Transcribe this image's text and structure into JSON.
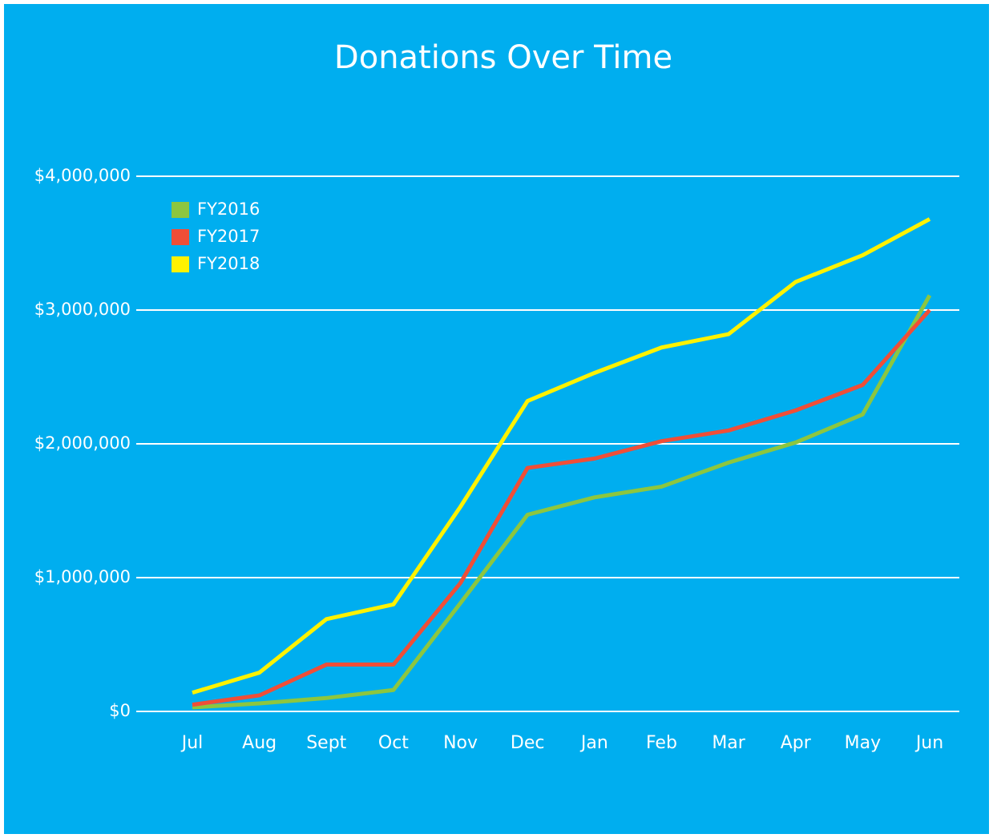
{
  "chart_data": {
    "type": "line",
    "title": "Donations Over Time",
    "categories": [
      "Jul",
      "Aug",
      "Sept",
      "Oct",
      "Nov",
      "Dec",
      "Jan",
      "Feb",
      "Mar",
      "Apr",
      "May",
      "Jun"
    ],
    "series": [
      {
        "name": "FY2016",
        "color": "#8dc63f",
        "values": [
          30000,
          60000,
          100000,
          160000,
          810000,
          1470000,
          1600000,
          1680000,
          1860000,
          2010000,
          2220000,
          3110000
        ]
      },
      {
        "name": "FY2017",
        "color": "#f04e37",
        "values": [
          50000,
          120000,
          350000,
          350000,
          960000,
          1820000,
          1890000,
          2020000,
          2100000,
          2250000,
          2440000,
          3000000
        ]
      },
      {
        "name": "FY2018",
        "color": "#fff200",
        "values": [
          140000,
          290000,
          690000,
          800000,
          1530000,
          2320000,
          2530000,
          2720000,
          2820000,
          3210000,
          3410000,
          3680000
        ]
      }
    ],
    "ylim": [
      0,
      4000000
    ],
    "yticks": [
      {
        "value": 0,
        "label": "$0"
      },
      {
        "value": 1000000,
        "label": "$1,000,000"
      },
      {
        "value": 2000000,
        "label": "$2,000,000"
      },
      {
        "value": 3000000,
        "label": "$3,000,000"
      },
      {
        "value": 4000000,
        "label": "$4,000,000"
      }
    ],
    "grid": true,
    "legend": "top-left",
    "background": "#00aeef"
  }
}
